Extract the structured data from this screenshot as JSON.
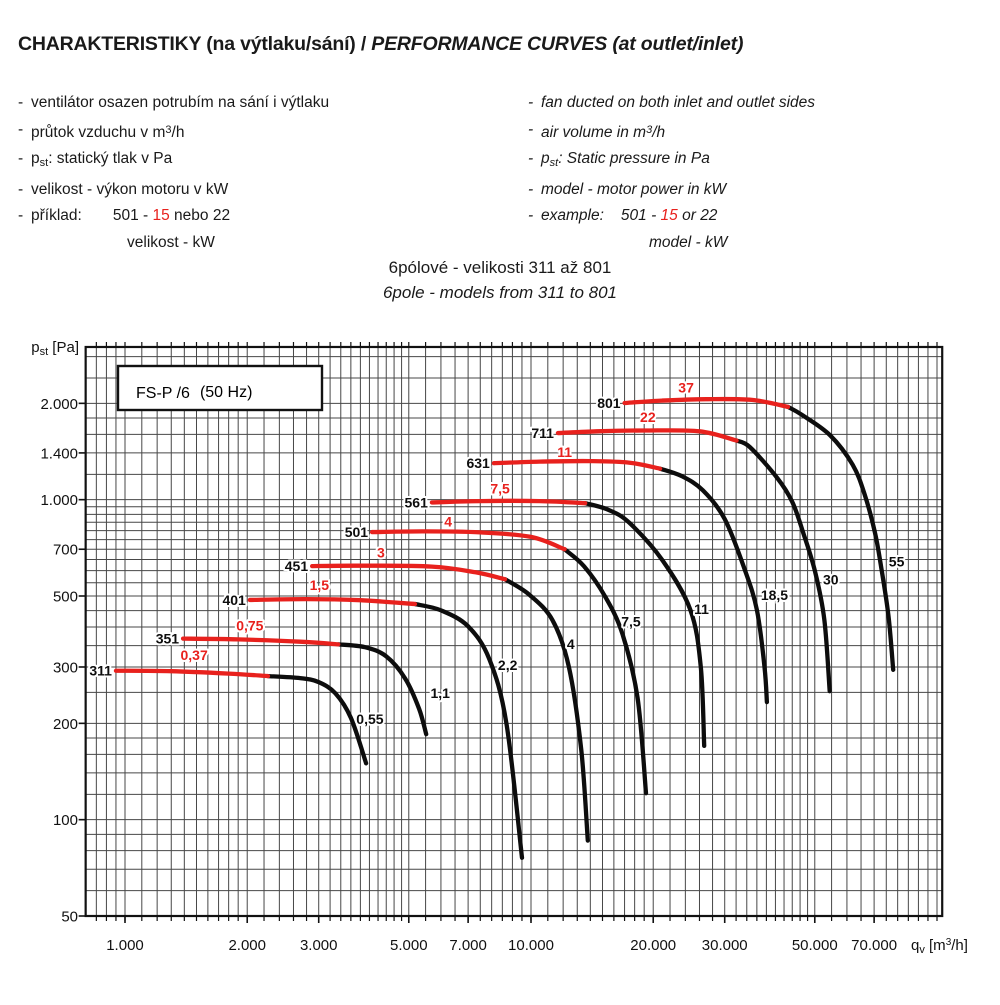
{
  "header": {
    "title_cz": "CHARAKTERISTIKY (na výtlaku/sání) / ",
    "title_en": "PERFORMANCE CURVES (at outlet/inlet)"
  },
  "bullet_char": "-",
  "intro_cz": {
    "item1": "ventilátor osazen potrubím na sání i výtlaku",
    "item2_pre": "průtok vzduchu v m",
    "item2_sup": "3",
    "item2_post": "/h",
    "item3_base": "p",
    "item3_sub": "st",
    "item3_rest": ": statický tlak v Pa",
    "item4": "velikost - výkon motoru v kW",
    "item5_label": "příklad:",
    "item5_a": "501 - ",
    "item5_red": "15",
    "item5_b": " nebo 22",
    "item6": "velikost - kW"
  },
  "intro_en": {
    "item1": "fan ducted on both inlet and outlet sides",
    "item2_pre": "air volume in m",
    "item2_sup": "3",
    "item2_post": "/h",
    "item3_base": "p",
    "item3_sub": "st",
    "item3_rest": ": Static pressure in Pa",
    "item4": "model - motor power in kW",
    "item5_label": "example:",
    "item5_a": "501 - ",
    "item5_red": "15",
    "item5_b": " or 22",
    "item6": "model - kW"
  },
  "subtitle": {
    "cz": "6pólové - velikosti 311 až 801",
    "en": "6pole - models from 311 to 801"
  },
  "chart_data": {
    "type": "line",
    "log_x": true,
    "log_y": true,
    "grid": true,
    "title": "FS-P /6",
    "title_note": "(50 Hz)",
    "ylabel": {
      "base": "p",
      "sub": "st",
      "rest": " [Pa]"
    },
    "xlabel": {
      "base": "q",
      "sub": "v",
      "rest1": " [m",
      "sup": "3",
      "rest2": "/h]"
    },
    "xlim": [
      800,
      103000
    ],
    "ylim": [
      50,
      3000
    ],
    "x_ticks": [
      {
        "v": 1000,
        "label": "1.000"
      },
      {
        "v": 2000,
        "label": "2.000"
      },
      {
        "v": 3000,
        "label": "3.000"
      },
      {
        "v": 5000,
        "label": "5.000"
      },
      {
        "v": 7000,
        "label": "7.000"
      },
      {
        "v": 10000,
        "label": "10.000"
      },
      {
        "v": 20000,
        "label": "20.000"
      },
      {
        "v": 30000,
        "label": "30.000"
      },
      {
        "v": 50000,
        "label": "50.000"
      },
      {
        "v": 70000,
        "label": "70.000"
      }
    ],
    "y_ticks": [
      {
        "v": 2000,
        "label": "2.000"
      },
      {
        "v": 1400,
        "label": "1.400"
      },
      {
        "v": 1000,
        "label": "1.000"
      },
      {
        "v": 700,
        "label": "700"
      },
      {
        "v": 500,
        "label": "500"
      },
      {
        "v": 300,
        "label": "300"
      },
      {
        "v": 200,
        "label": "200"
      },
      {
        "v": 100,
        "label": "100"
      },
      {
        "v": 50,
        "label": "50"
      }
    ],
    "colors": {
      "red": "#e8211d",
      "black": "#0d0d0d",
      "grid": "#474747"
    },
    "series": [
      {
        "model": "311",
        "power_red": "0,37",
        "power_black": "0,55",
        "red": [
          [
            950,
            292
          ],
          [
            1300,
            291
          ],
          [
            1800,
            286
          ],
          [
            2250,
            281
          ]
        ],
        "black": [
          [
            2250,
            281
          ],
          [
            2700,
            277
          ],
          [
            3000,
            269
          ],
          [
            3300,
            248
          ],
          [
            3600,
            208
          ],
          [
            3925,
            150
          ]
        ],
        "red_label_at": [
          1480,
          316
        ],
        "black_label_at": [
          3650,
          205
        ]
      },
      {
        "model": "351",
        "power_red": "0,75",
        "power_black": "1,1",
        "red": [
          [
            1390,
            368
          ],
          [
            1900,
            366
          ],
          [
            2700,
            360
          ],
          [
            3350,
            353
          ]
        ],
        "black": [
          [
            3350,
            353
          ],
          [
            3900,
            346
          ],
          [
            4400,
            324
          ],
          [
            4900,
            276
          ],
          [
            5300,
            222
          ],
          [
            5520,
            185
          ]
        ],
        "red_label_at": [
          2030,
          390
        ],
        "black_label_at": [
          5560,
          247
        ]
      },
      {
        "model": "401",
        "power_red": "1,5",
        "power_black": "2,2",
        "red": [
          [
            2030,
            486
          ],
          [
            2800,
            489
          ],
          [
            3800,
            485
          ],
          [
            5180,
            472
          ]
        ],
        "black": [
          [
            5180,
            472
          ],
          [
            6000,
            451
          ],
          [
            7000,
            402
          ],
          [
            7900,
            317
          ],
          [
            8700,
            200
          ],
          [
            9500,
            76
          ]
        ],
        "red_label_at": [
          3010,
          522
        ],
        "black_label_at": [
          8150,
          302
        ]
      },
      {
        "model": "451",
        "power_red": "3",
        "power_black": "4",
        "red": [
          [
            2890,
            620
          ],
          [
            3800,
            622
          ],
          [
            5700,
            618
          ],
          [
            7300,
            593
          ],
          [
            8630,
            564
          ]
        ],
        "black": [
          [
            8630,
            564
          ],
          [
            9900,
            505
          ],
          [
            11300,
            420
          ],
          [
            12400,
            300
          ],
          [
            13300,
            165
          ],
          [
            13800,
            86
          ]
        ],
        "red_label_at": [
          4270,
          660
        ],
        "black_label_at": [
          12050,
          352
        ]
      },
      {
        "model": "501",
        "power_red": "4",
        "power_black": "7,5",
        "red": [
          [
            4060,
            792
          ],
          [
            5500,
            796
          ],
          [
            7500,
            790
          ],
          [
            10000,
            765
          ],
          [
            12100,
            700
          ]
        ],
        "black": [
          [
            12100,
            700
          ],
          [
            13500,
            620
          ],
          [
            15200,
            500
          ],
          [
            16800,
            380
          ],
          [
            18300,
            240
          ],
          [
            19200,
            121
          ]
        ],
        "red_label_at": [
          6250,
          825
        ],
        "black_label_at": [
          16400,
          413
        ]
      },
      {
        "model": "561",
        "power_red": "7,5",
        "power_black": "11",
        "red": [
          [
            5700,
            980
          ],
          [
            7500,
            990
          ],
          [
            10500,
            990
          ],
          [
            13600,
            975
          ]
        ],
        "black": [
          [
            13600,
            975
          ],
          [
            15500,
            930
          ],
          [
            17500,
            845
          ],
          [
            21100,
            645
          ],
          [
            24700,
            452
          ],
          [
            26200,
            300
          ],
          [
            26700,
            170
          ]
        ],
        "red_label_at": [
          8390,
          1045
        ],
        "black_label_at": [
          24800,
          452
        ]
      },
      {
        "model": "631",
        "power_red": "11",
        "power_black": "18,5",
        "red": [
          [
            8100,
            1300
          ],
          [
            10500,
            1315
          ],
          [
            14000,
            1320
          ],
          [
            17500,
            1305
          ],
          [
            20800,
            1250
          ]
        ],
        "black": [
          [
            20800,
            1250
          ],
          [
            23500,
            1185
          ],
          [
            26500,
            1070
          ],
          [
            30000,
            870
          ],
          [
            33600,
            605
          ],
          [
            36000,
            452
          ],
          [
            37600,
            300
          ],
          [
            38100,
            233
          ]
        ],
        "red_label_at": [
          12100,
          1360
        ],
        "black_label_at": [
          36200,
          500
        ]
      },
      {
        "model": "711",
        "power_red": "22",
        "power_black": "30",
        "red": [
          [
            11650,
            1615
          ],
          [
            14500,
            1635
          ],
          [
            19000,
            1645
          ],
          [
            26000,
            1635
          ],
          [
            32100,
            1530
          ]
        ],
        "black": [
          [
            32100,
            1530
          ],
          [
            34600,
            1460
          ],
          [
            40400,
            1170
          ],
          [
            44000,
            985
          ],
          [
            46800,
            790
          ],
          [
            50100,
            595
          ],
          [
            52800,
            420
          ],
          [
            54400,
            252
          ]
        ],
        "red_label_at": [
          19400,
          1750
        ],
        "black_label_at": [
          51500,
          558
        ]
      },
      {
        "model": "801",
        "power_red": "37",
        "power_black": "55",
        "red": [
          [
            17000,
            2005
          ],
          [
            21000,
            2040
          ],
          [
            27000,
            2060
          ],
          [
            35000,
            2050
          ],
          [
            42950,
            1950
          ]
        ],
        "black": [
          [
            42950,
            1950
          ],
          [
            46500,
            1840
          ],
          [
            54500,
            1590
          ],
          [
            62000,
            1285
          ],
          [
            66400,
            1035
          ],
          [
            70300,
            790
          ],
          [
            72800,
            620
          ],
          [
            76000,
            430
          ],
          [
            78000,
            294
          ]
        ],
        "red_label_at": [
          24100,
          2165
        ],
        "black_label_at": [
          74800,
          636
        ]
      }
    ]
  }
}
